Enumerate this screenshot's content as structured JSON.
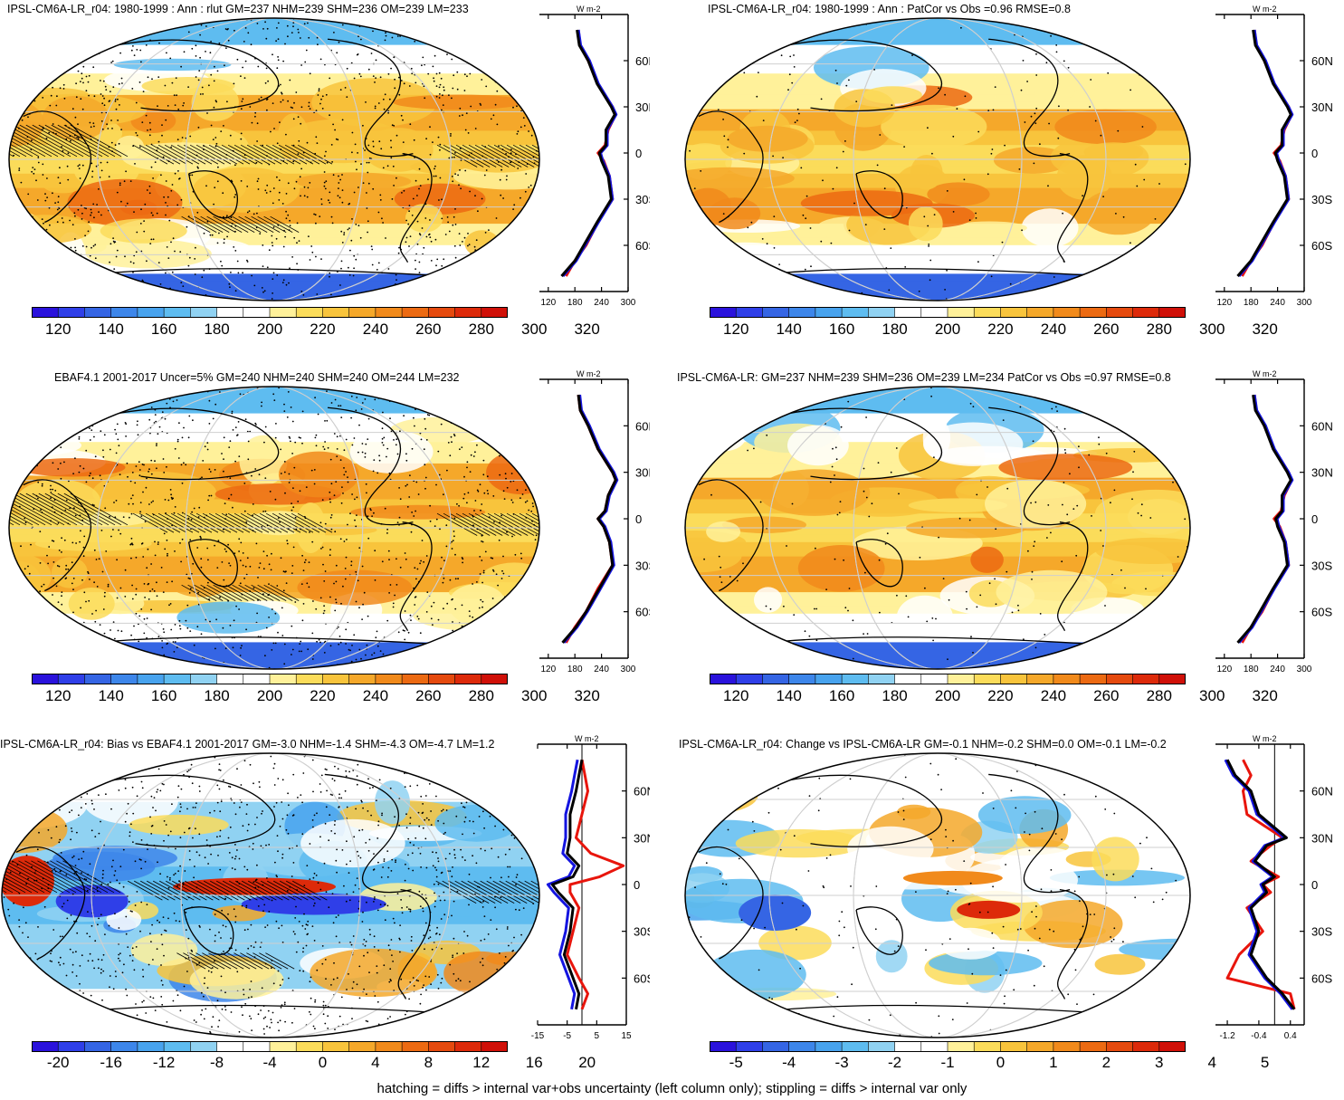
{
  "panels": [
    {
      "title": "IPSL-CM6A-LR_r04: 1980-1999 : Ann : rlut GM=237 NHM=239 SHM=236 OM=239 LM=233",
      "kind": "abs",
      "hatch": true,
      "stipple": "heavy",
      "cbar": [
        "120",
        "140",
        "160",
        "180",
        "200",
        "220",
        "240",
        "260",
        "280",
        "300",
        "320"
      ],
      "zonal_ticks": [
        "120",
        "180",
        "240",
        "300"
      ],
      "zonal_range": [
        100,
        300
      ],
      "lat_labels": [
        "60N",
        "30N",
        "0",
        "30S",
        "60S"
      ],
      "units": "W m-2"
    },
    {
      "title": "IPSL-CM6A-LR_r04: 1980-1999 : Ann : PatCor vs Obs =0.96 RMSE=0.8",
      "kind": "abs",
      "hatch": false,
      "stipple": "light",
      "cbar": [
        "120",
        "140",
        "160",
        "180",
        "200",
        "220",
        "240",
        "260",
        "280",
        "300",
        "320"
      ],
      "zonal_ticks": [
        "120",
        "180",
        "240",
        "300"
      ],
      "zonal_range": [
        100,
        300
      ],
      "lat_labels": [
        "60N",
        "30N",
        "0",
        "30S",
        "60S"
      ],
      "units": "W m-2"
    },
    {
      "title": "EBAF4.1 2001-2017 Uncer=5% GM=240 NHM=240 SHM=240 OM=244 LM=232",
      "kind": "abs",
      "hatch": true,
      "stipple": "heavy",
      "cbar": [
        "120",
        "140",
        "160",
        "180",
        "200",
        "220",
        "240",
        "260",
        "280",
        "300",
        "320"
      ],
      "zonal_ticks": [
        "120",
        "180",
        "240",
        "300"
      ],
      "zonal_range": [
        100,
        300
      ],
      "lat_labels": [
        "60N",
        "30N",
        "0",
        "30S",
        "60S"
      ],
      "units": "W m-2"
    },
    {
      "title": "IPSL-CM6A-LR: GM=237 NHM=239 SHM=236 OM=239 LM=234 PatCor vs Obs =0.97 RMSE=0.8",
      "kind": "abs",
      "hatch": false,
      "stipple": "light",
      "cbar": [
        "120",
        "140",
        "160",
        "180",
        "200",
        "220",
        "240",
        "260",
        "280",
        "300",
        "320"
      ],
      "zonal_ticks": [
        "120",
        "180",
        "240",
        "300"
      ],
      "zonal_range": [
        100,
        300
      ],
      "lat_labels": [
        "60N",
        "30N",
        "0",
        "30S",
        "60S"
      ],
      "units": "W m-2"
    },
    {
      "title": "IPSL-CM6A-LR_r04: Bias vs EBAF4.1 2001-2017 GM=-3.0 NHM=-1.4 SHM=-4.3 OM=-4.7 LM=1.2",
      "kind": "bias",
      "hatch": true,
      "stipple": "heavy",
      "cbar": [
        "-20",
        "-16",
        "-12",
        "-8",
        "-4",
        "0",
        "4",
        "8",
        "12",
        "16",
        "20"
      ],
      "zonal_ticks": [
        "-15",
        "-5",
        "5",
        "15"
      ],
      "zonal_range": [
        -15,
        15
      ],
      "lat_labels": [
        "60N",
        "30N",
        "0",
        "30S",
        "60S"
      ],
      "units": "W m-2"
    },
    {
      "title": "IPSL-CM6A-LR_r04: Change vs IPSL-CM6A-LR GM=-0.1 NHM=-0.2 SHM=0.0 OM=-0.1 LM=-0.2",
      "kind": "change",
      "hatch": false,
      "stipple": "light",
      "cbar": [
        "-5",
        "-4",
        "-3",
        "-2",
        "-1",
        "0",
        "1",
        "2",
        "3",
        "4",
        "5"
      ],
      "zonal_ticks": [
        "-1.2",
        "-0.4",
        "0.4"
      ],
      "zonal_range": [
        -1.5,
        0.75
      ],
      "lat_labels": [
        "60N",
        "30N",
        "0",
        "30S",
        "60S"
      ],
      "units": "W m-2"
    }
  ],
  "footer": "hatching = diffs > internal var+obs uncertainty (left column only); stippling = diffs > internal var only",
  "chart_data": [
    {
      "type": "heatmap",
      "title": "IPSL-CM6A-LR_r04: 1980-1999 : Ann : rlut GM=237 NHM=239 SHM=236 OM=239 LM=233",
      "colorbar": [
        120,
        140,
        160,
        180,
        200,
        220,
        240,
        260,
        280,
        300,
        320
      ],
      "zonal_mean": {
        "lat": [
          -80,
          -70,
          -60,
          -45,
          -30,
          -15,
          -5,
          0,
          5,
          15,
          25,
          30,
          45,
          60,
          70,
          80
        ],
        "model": [
          150,
          180,
          200,
          230,
          262,
          255,
          240,
          235,
          250,
          250,
          270,
          262,
          230,
          210,
          190,
          185
        ],
        "obs": [
          160,
          180,
          205,
          232,
          265,
          258,
          245,
          232,
          248,
          255,
          272,
          265,
          232,
          210,
          192,
          188
        ]
      }
    },
    {
      "type": "heatmap",
      "title": "IPSL-CM6A-LR_r04: 1980-1999 : Ann : PatCor vs Obs =0.96 RMSE=0.8",
      "colorbar": [
        120,
        140,
        160,
        180,
        200,
        220,
        240,
        260,
        280,
        300,
        320
      ],
      "zonal_mean": {
        "lat": [
          -80,
          -70,
          -60,
          -45,
          -30,
          -15,
          -5,
          0,
          5,
          15,
          25,
          30,
          45,
          60,
          70,
          80
        ],
        "model": [
          150,
          180,
          200,
          230,
          262,
          255,
          240,
          235,
          250,
          250,
          270,
          262,
          230,
          210,
          190,
          185
        ],
        "obs": [
          160,
          180,
          205,
          232,
          265,
          258,
          245,
          232,
          248,
          255,
          272,
          265,
          232,
          210,
          192,
          188
        ]
      }
    },
    {
      "type": "heatmap",
      "title": "EBAF4.1 2001-2017 Uncer=5% GM=240 NHM=240 SHM=240 OM=244 LM=232",
      "colorbar": [
        120,
        140,
        160,
        180,
        200,
        220,
        240,
        260,
        280,
        300,
        320
      ],
      "zonal_mean": {
        "lat": [
          -80,
          -70,
          -60,
          -45,
          -30,
          -15,
          -5,
          0,
          5,
          15,
          25,
          30,
          45,
          60,
          70,
          80
        ],
        "model": [
          152,
          182,
          205,
          235,
          265,
          258,
          245,
          232,
          248,
          255,
          272,
          265,
          232,
          210,
          192,
          188
        ],
        "obs": [
          160,
          180,
          205,
          232,
          265,
          258,
          245,
          232,
          248,
          255,
          272,
          265,
          232,
          210,
          192,
          188
        ]
      }
    },
    {
      "type": "heatmap",
      "title": "IPSL-CM6A-LR: GM=237 NHM=239 SHM=236 OM=239 LM=234 PatCor vs Obs =0.97 RMSE=0.8",
      "colorbar": [
        120,
        140,
        160,
        180,
        200,
        220,
        240,
        260,
        280,
        300,
        320
      ],
      "zonal_mean": {
        "lat": [
          -80,
          -70,
          -60,
          -45,
          -30,
          -15,
          -5,
          0,
          5,
          15,
          25,
          30,
          45,
          60,
          70,
          80
        ],
        "model": [
          150,
          180,
          200,
          230,
          262,
          255,
          240,
          236,
          250,
          250,
          270,
          262,
          230,
          210,
          190,
          185
        ],
        "obs": [
          160,
          180,
          205,
          232,
          265,
          258,
          245,
          232,
          248,
          255,
          272,
          265,
          232,
          210,
          192,
          188
        ]
      }
    },
    {
      "type": "heatmap",
      "title": "IPSL-CM6A-LR_r04: Bias vs EBAF4.1 2001-2017 GM=-3.0 NHM=-1.4 SHM=-4.3 OM=-4.7 LM=1.2",
      "colorbar": [
        -20,
        -16,
        -12,
        -8,
        -4,
        0,
        4,
        8,
        12,
        16,
        20
      ],
      "zonal_mean": {
        "lat": [
          -80,
          -70,
          -60,
          -45,
          -30,
          -15,
          -5,
          0,
          5,
          12,
          20,
          30,
          45,
          60,
          70,
          80
        ],
        "model": [
          -2,
          -1,
          -3,
          -6,
          -4,
          -3,
          -8,
          -10,
          -3,
          -1,
          -5,
          -4,
          -4,
          -2,
          -1,
          0
        ],
        "obs": [
          0,
          2,
          -1,
          -5,
          -3,
          -1,
          -4,
          -4,
          6,
          14,
          3,
          -2,
          0,
          2,
          1,
          0
        ]
      }
    },
    {
      "type": "heatmap",
      "title": "IPSL-CM6A-LR_r04: Change vs IPSL-CM6A-LR GM=-0.1 NHM=-0.2 SHM=0.0 OM=-0.1 LM=-0.2",
      "colorbar": [
        -5,
        -4,
        -3,
        -2,
        -1,
        0,
        1,
        2,
        3,
        4,
        5
      ],
      "zonal_mean": {
        "lat": [
          -80,
          -70,
          -60,
          -45,
          -30,
          -15,
          -5,
          0,
          5,
          15,
          25,
          30,
          45,
          60,
          70,
          80
        ],
        "model": [
          0.5,
          0.2,
          -0.2,
          -0.6,
          -0.4,
          -0.6,
          -0.2,
          -0.3,
          0.0,
          -0.5,
          -0.2,
          0.3,
          -0.4,
          -0.6,
          -1.0,
          -1.2
        ],
        "obs": [
          0.5,
          0.4,
          -1.2,
          -0.9,
          -0.3,
          -0.7,
          -0.1,
          -0.3,
          0.1,
          -0.6,
          -0.1,
          0.2,
          -0.7,
          -0.8,
          -0.6,
          -0.8
        ]
      }
    }
  ]
}
